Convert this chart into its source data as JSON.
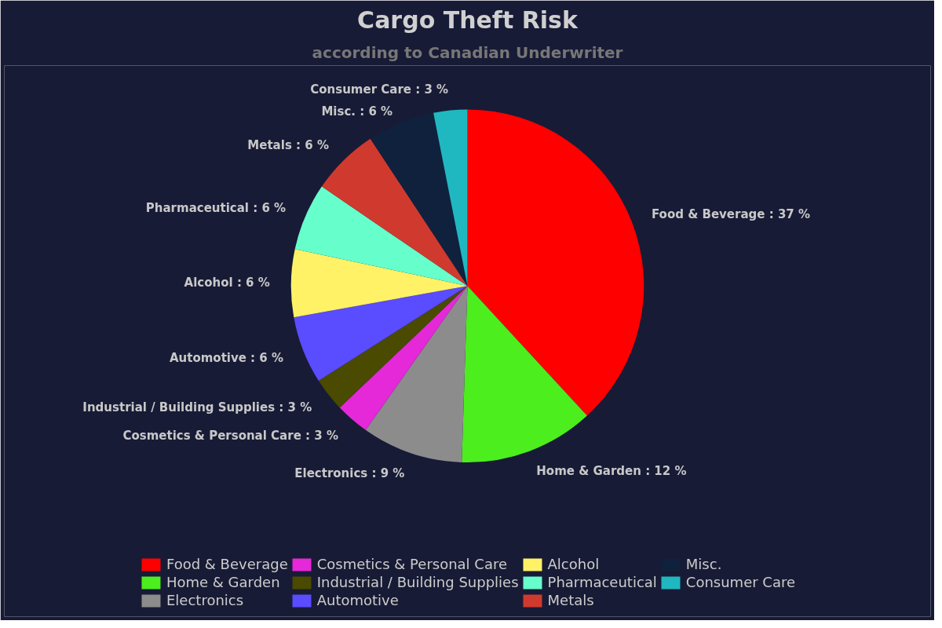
{
  "chart_data": {
    "type": "pie",
    "title": "Cargo Theft Risk",
    "subtitle": "according to Canadian Underwriter",
    "categories": [
      "Food & Beverage",
      "Home & Garden",
      "Electronics",
      "Cosmetics & Personal Care",
      "Industrial / Building Supplies",
      "Automotive",
      "Alcohol",
      "Pharmaceutical",
      "Metals",
      "Misc.",
      "Consumer Care"
    ],
    "values": [
      37,
      12,
      9,
      3,
      3,
      6,
      6,
      6,
      6,
      6,
      3
    ],
    "colors": [
      "#ff0000",
      "#4cee1e",
      "#8c8c8c",
      "#e528d8",
      "#4a4a00",
      "#5a4cff",
      "#fff266",
      "#66ffcc",
      "#d03a2e",
      "#10213d",
      "#20b8c0"
    ],
    "value_labels": [
      "Food & Beverage : 37 %",
      "Home & Garden : 12 %",
      "Electronics : 9 %",
      "Cosmetics & Personal Care : 3 %",
      "Industrial / Building Supplies : 3 %",
      "Automotive : 6 %",
      "Alcohol : 6 %",
      "Pharmaceutical : 6 %",
      "Metals : 6 %",
      "Misc. : 6 %",
      "Consumer Care : 3 %"
    ],
    "legend": "bottom"
  }
}
